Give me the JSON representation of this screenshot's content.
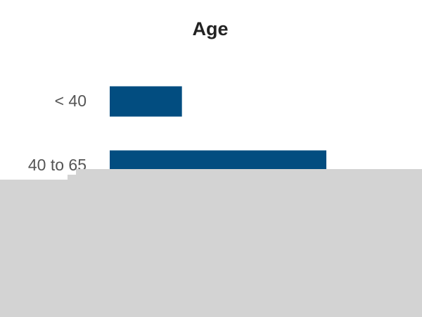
{
  "chart_data": {
    "type": "bar",
    "orientation": "horizontal",
    "title": "Age",
    "categories": [
      "< 40",
      "40 to 65"
    ],
    "values": [
      10,
      30
    ],
    "color": "#024d80"
  }
}
